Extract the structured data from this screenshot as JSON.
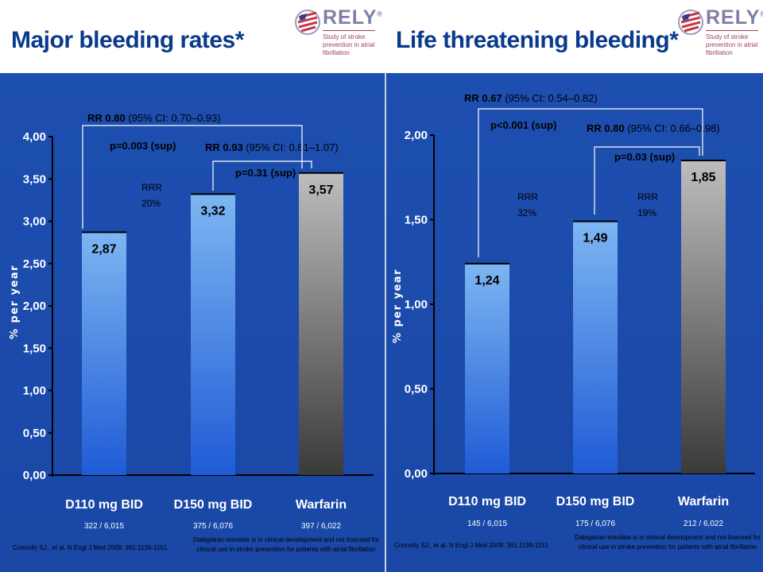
{
  "left_panel": {
    "title": "Major bleeding rates*",
    "logo": {
      "name": "RELY",
      "mark": "®",
      "subtitle": "Study of stroke prevention in atrial fibrillation"
    },
    "n_labels": [
      "322 / 6,015",
      "375 / 6,076",
      "397 / 6,022"
    ],
    "annotations": {
      "rr1_bold": "RR 0.80",
      "rr1_ci": "(95% CI: 0.70–0.93)",
      "p1": "p=0.003 (sup)",
      "rr2_bold": "RR 0.93",
      "rr2_ci": "(95% CI: 0.81–1.07)",
      "p2": "p=0.31 (sup)",
      "rrr1": "RRR",
      "rrr1_val": "20%"
    },
    "footnote_left": "Connolly SJ., et al. N Engl J Med 2009; 361:1139-1151.",
    "footnote_right": [
      "Dabigatran etexilate is in clinical development and not licensed for",
      "clinical use in stroke prevention for patients with atrial fibrillation"
    ]
  },
  "right_panel": {
    "title": "Life threatening bleeding*",
    "logo": {
      "name": "RELY",
      "mark": "®",
      "subtitle": "Study of stroke prevention in atrial fibrillation"
    },
    "n_labels": [
      "145 / 6,015",
      "175 / 6,076",
      "212 / 6,022"
    ],
    "annotations": {
      "rr1_bold": "RR 0.67",
      "rr1_ci": "(95% CI: 0.54–0.82)",
      "p1": "p<0.001 (sup)",
      "rr2_bold": "RR 0.80",
      "rr2_ci": "(95% CI: 0.66–0.98)",
      "p2": "p=0.03 (sup)",
      "rrr1": "RRR",
      "rrr1_val": "32%",
      "rrr2": "RRR",
      "rrr2_val": "19%"
    },
    "footnote_left": "Connolly SJ., et al. N Engl J Med 2009; 361:1139-1151.",
    "footnote_right": [
      "Dabigatran etexilate is in clinical development and not licensed for",
      "clinical use in stroke prevention for patients with atrial fibrillation"
    ]
  },
  "colors": {
    "background": "#1a47a6",
    "title": "#0a3a8c",
    "dabigatran_bar_top": "#7db6f2",
    "dabigatran_bar_bottom": "#1f5bd6",
    "warfarin_bar_top": "#bdbdbd",
    "warfarin_bar_bottom": "#3a3a3a"
  },
  "chart_data": [
    {
      "type": "bar",
      "title": "Major bleeding rates*",
      "ylabel": "% per year",
      "xlabel": "",
      "categories": [
        "D110 mg BID",
        "D150 mg BID",
        "Warfarin"
      ],
      "values": [
        2.87,
        3.32,
        3.57
      ],
      "value_labels": [
        "2,87",
        "3,32",
        "3,57"
      ],
      "ylim": [
        0,
        4
      ],
      "yticks": [
        "0,00",
        "0,50",
        "1,00",
        "1,50",
        "2,00",
        "2,50",
        "3,00",
        "3,50",
        "4,00"
      ],
      "ytick_values": [
        0,
        0.5,
        1,
        1.5,
        2,
        2.5,
        3,
        3.5,
        4
      ],
      "grid": false,
      "legend": "none"
    },
    {
      "type": "bar",
      "title": "Life threatening bleeding*",
      "ylabel": "% per year",
      "xlabel": "",
      "categories": [
        "D110 mg BID",
        "D150 mg BID",
        "Warfarin"
      ],
      "values": [
        1.24,
        1.49,
        1.85
      ],
      "value_labels": [
        "1,24",
        "1,49",
        "1,85"
      ],
      "ylim": [
        0,
        2
      ],
      "yticks": [
        "0,00",
        "0,50",
        "1,00",
        "1,50",
        "2,00"
      ],
      "ytick_values": [
        0,
        0.5,
        1,
        1.5,
        2
      ],
      "grid": false,
      "legend": "none"
    }
  ]
}
